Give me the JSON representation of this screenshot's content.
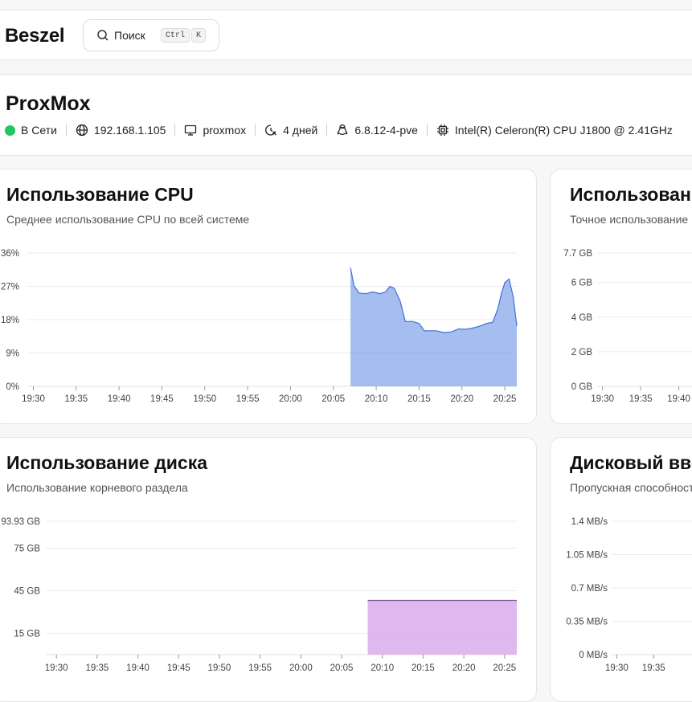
{
  "app": {
    "logo": "Beszel",
    "search": {
      "label": "Поиск",
      "kbd_ctrl": "Ctrl",
      "kbd_k": "K"
    }
  },
  "system": {
    "name": "ProxMox",
    "status": "В Сети",
    "status_color": "#22c55e",
    "ip": "192.168.1.105",
    "hostname": "proxmox",
    "uptime": "4 дней",
    "kernel": "6.8.12-4-pve",
    "cpu": "Intel(R) Celeron(R) CPU J1800 @ 2.41GHz"
  },
  "cards": {
    "cpu": {
      "title": "Использование CPU",
      "subtitle": "Среднее использование CPU по всей системе"
    },
    "memory": {
      "title": "Использование памяти",
      "subtitle": "Точное использование"
    },
    "disk": {
      "title": "Использование диска",
      "subtitle": "Использование корневого раздела"
    },
    "diskio": {
      "title": "Дисковый ввод/вывод",
      "subtitle": "Пропускная способность"
    }
  },
  "chart_data": [
    {
      "id": "cpu",
      "type": "area",
      "color": "#6f95e6",
      "ylim": [
        0,
        36
      ],
      "yticks": [
        "36%",
        "27%",
        "18%",
        "9%",
        "0%"
      ],
      "ytick_values": [
        36,
        27,
        18,
        9,
        0
      ],
      "x_tick_labels": [
        "19:30",
        "19:35",
        "19:40",
        "19:45",
        "19:50",
        "19:55",
        "20:00",
        "20:05",
        "20:10",
        "20:15",
        "20:20",
        "20:25"
      ],
      "x_tick_minutes": [
        1170,
        1175,
        1180,
        1185,
        1190,
        1195,
        1200,
        1205,
        1210,
        1215,
        1220,
        1225
      ],
      "xlim_minutes": [
        1169.3,
        1226.4
      ],
      "x_minutes": [
        1207.0,
        1207.4,
        1208.0,
        1208.8,
        1209.6,
        1210.4,
        1211.1,
        1211.6,
        1212.1,
        1212.8,
        1213.4,
        1214.3,
        1215.0,
        1215.6,
        1216.2,
        1217.0,
        1217.9,
        1218.8,
        1219.6,
        1220.3,
        1221.0,
        1222.0,
        1222.9,
        1223.6,
        1224.2,
        1224.6,
        1225.0,
        1225.5,
        1226.0,
        1226.4
      ],
      "values": [
        32.0,
        27.2,
        25.2,
        25.0,
        25.5,
        25.0,
        25.5,
        27.0,
        26.5,
        23.0,
        17.5,
        17.5,
        17.0,
        15.0,
        15.0,
        15.0,
        14.5,
        14.7,
        15.5,
        15.4,
        15.6,
        16.2,
        17.0,
        17.3,
        21.0,
        25.0,
        28.0,
        29.0,
        24.0,
        16.3
      ]
    },
    {
      "id": "memory",
      "type": "area",
      "ylim": [
        0,
        7.7
      ],
      "yticks": [
        "7.7 GB",
        "6 GB",
        "4 GB",
        "2 GB",
        "0 GB"
      ],
      "ytick_values": [
        7.7,
        6,
        4,
        2,
        0
      ],
      "x_tick_labels": [
        "19:30",
        "19:35",
        "19:40"
      ],
      "x_tick_minutes": [
        1170,
        1175,
        1180
      ],
      "xlim_minutes": [
        1169.3,
        1226.4
      ]
    },
    {
      "id": "disk",
      "type": "area",
      "color": "#dcb4ee",
      "line_color": "#7a5a8a",
      "ylim": [
        0,
        93.93
      ],
      "yticks": [
        "93.93 GB",
        "75 GB",
        "45 GB",
        "15 GB"
      ],
      "ytick_values": [
        93.93,
        75,
        45,
        15
      ],
      "x_tick_labels": [
        "19:30",
        "19:35",
        "19:40",
        "19:45",
        "19:50",
        "19:55",
        "20:00",
        "20:05",
        "20:10",
        "20:15",
        "20:20",
        "20:25"
      ],
      "x_tick_minutes": [
        1170,
        1175,
        1180,
        1185,
        1190,
        1195,
        1200,
        1205,
        1210,
        1215,
        1220,
        1225
      ],
      "xlim_minutes": [
        1168.7,
        1226.5
      ],
      "x_minutes": [
        1208.2,
        1226.5
      ],
      "values": [
        38.2,
        38.2
      ]
    },
    {
      "id": "diskio",
      "type": "area",
      "ylim": [
        0,
        1.4
      ],
      "yticks": [
        "1.4 MB/s",
        "1.05 MB/s",
        "0.7 MB/s",
        "0.35 MB/s",
        "0 MB/s"
      ],
      "ytick_values": [
        1.4,
        1.05,
        0.7,
        0.35,
        0
      ],
      "x_tick_labels": [
        "19:30",
        "19:35"
      ],
      "x_tick_minutes": [
        1170,
        1175
      ],
      "xlim_minutes": [
        1169.3,
        1226.4
      ]
    }
  ]
}
